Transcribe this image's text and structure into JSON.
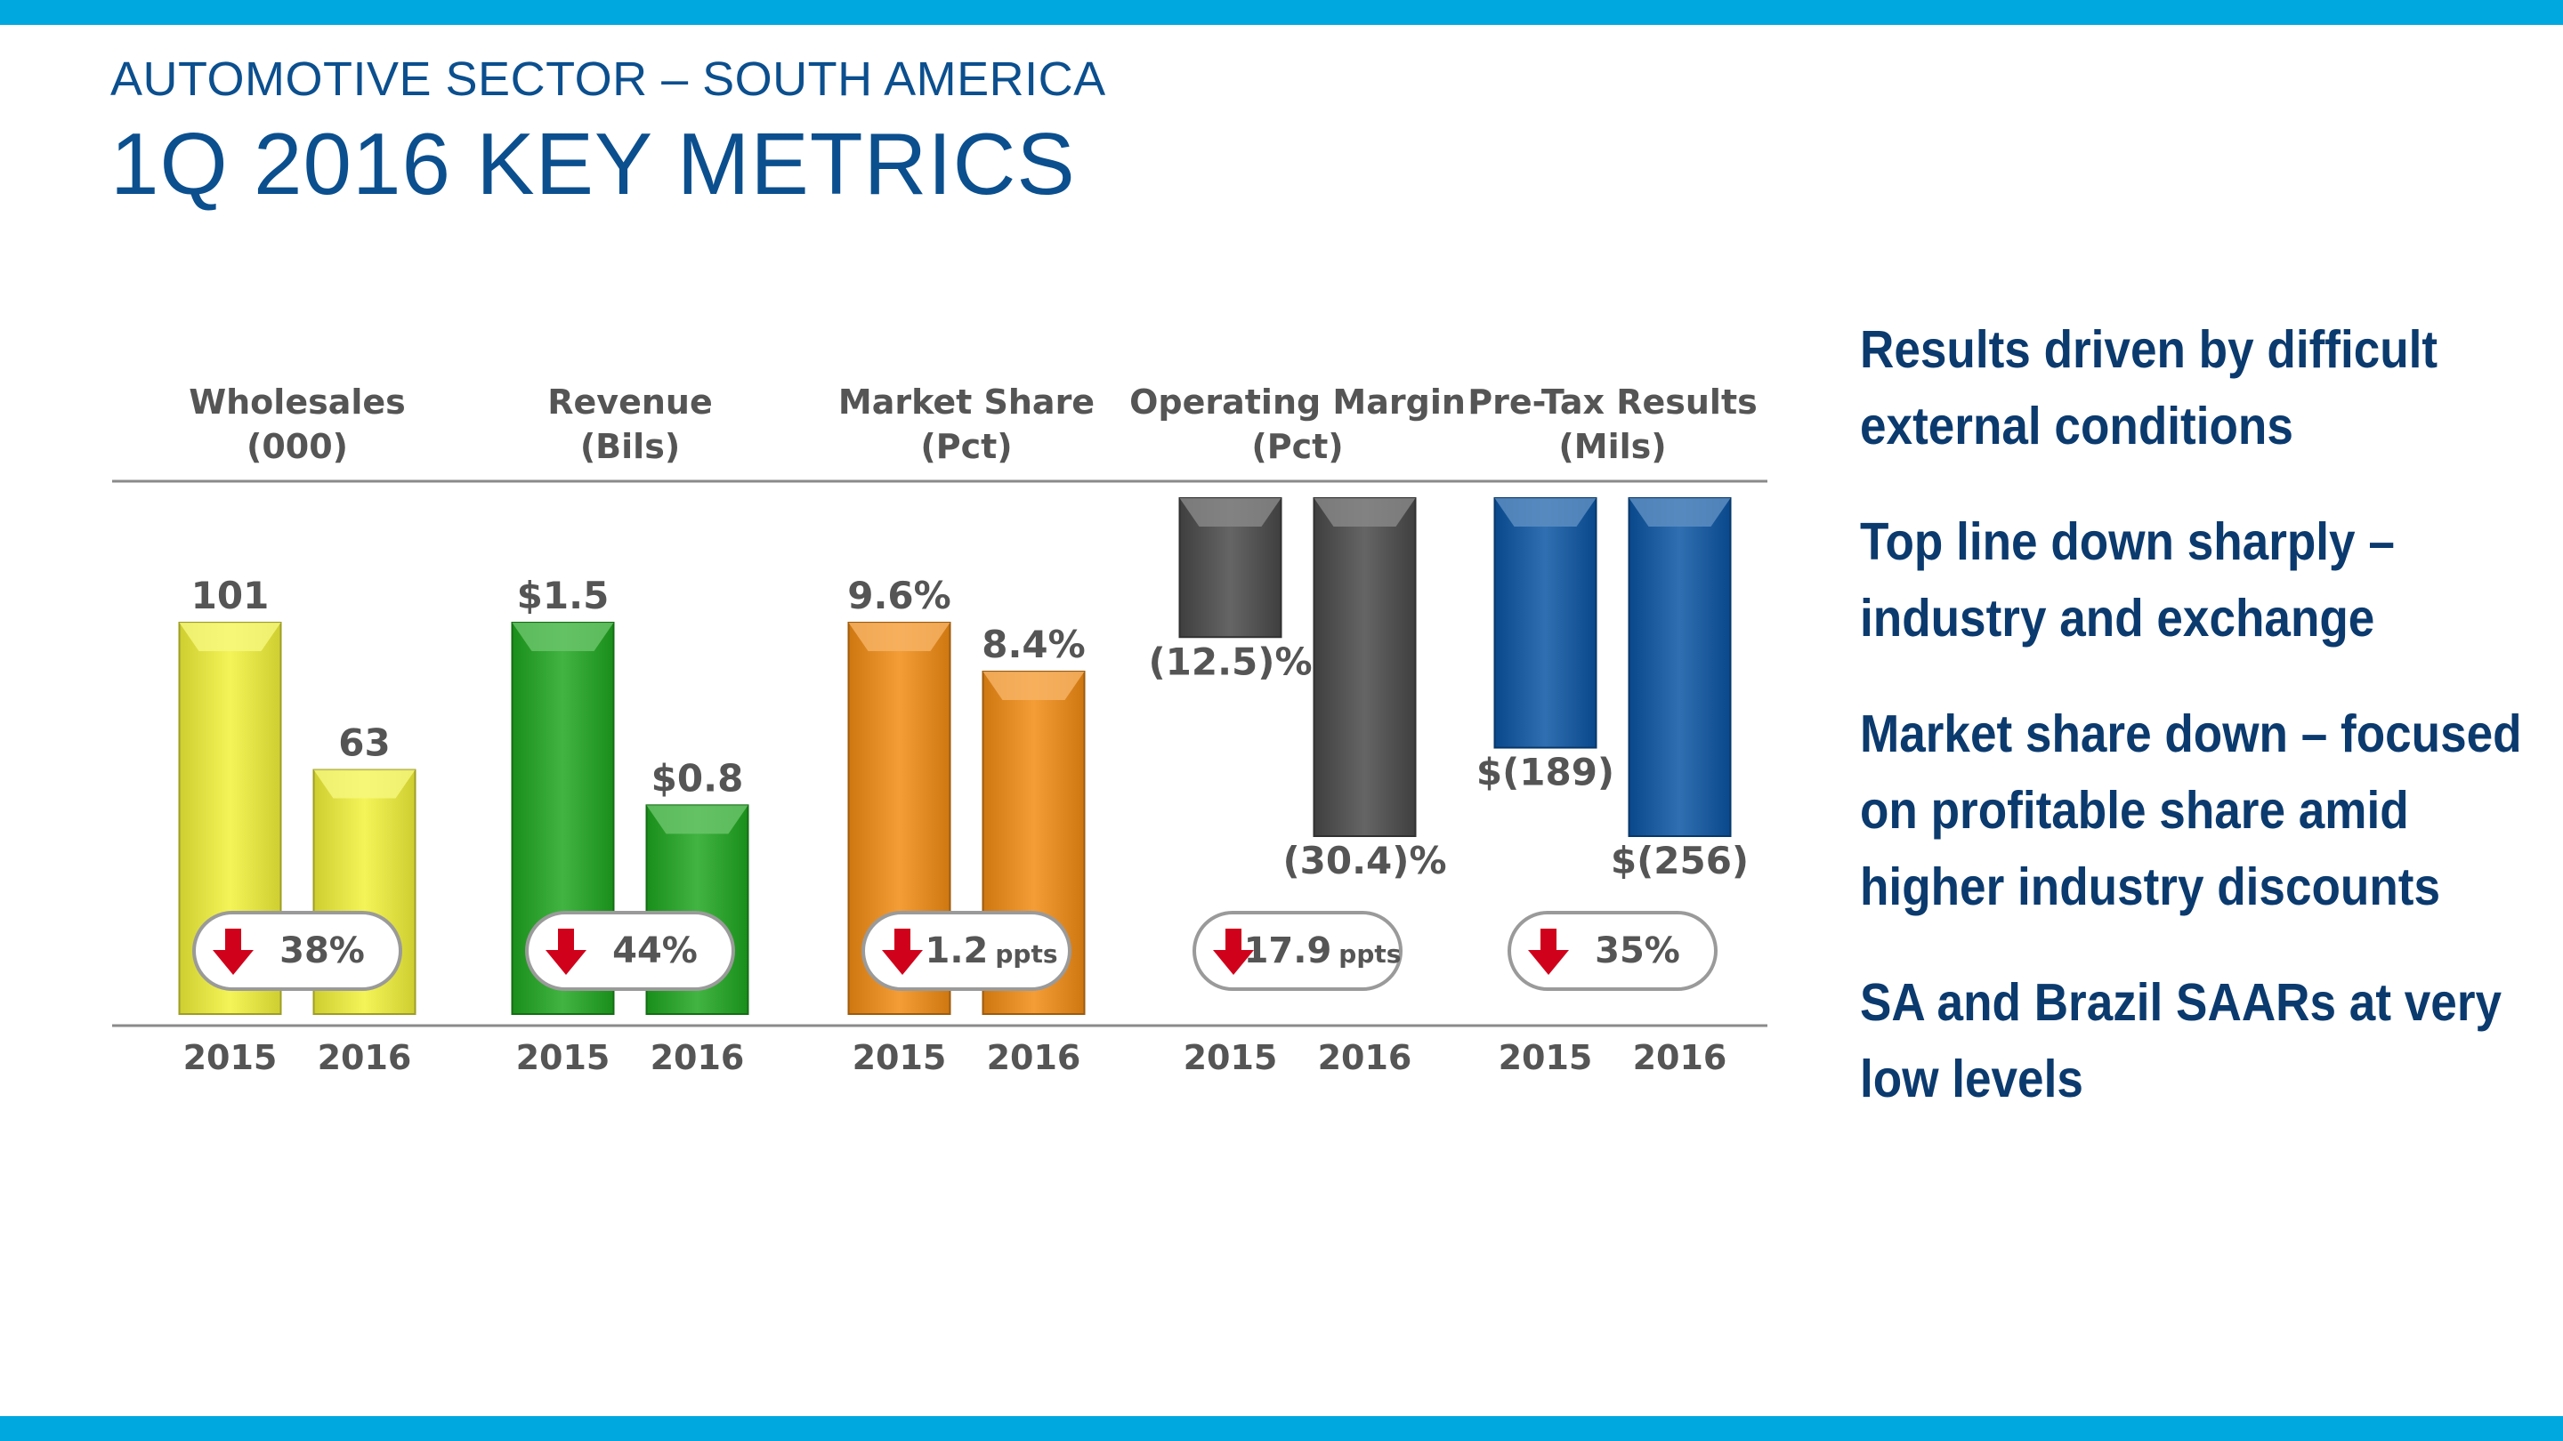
{
  "header": {
    "subtitle": "AUTOMOTIVE SECTOR – SOUTH AMERICA",
    "title": "1Q 2016 KEY METRICS"
  },
  "colors": {
    "band": "#00a8e0",
    "title": "#0b4f8e",
    "bullet_text": "#0b3a6e",
    "axis": "#8a8a8a",
    "label_text": "#555555",
    "down_arrow": "#d0021b"
  },
  "bullets": [
    "Results driven by difficult external conditions",
    "Top line down sharply – industry and exchange",
    "Market share down – focused on profitable share amid higher industry discounts",
    "SA and Brazil SAARs at very low levels"
  ],
  "chart_data": {
    "type": "bar",
    "title": "1Q 2016 KEY METRICS",
    "categories": [
      "2015",
      "2016"
    ],
    "panels": [
      {
        "title_line1": "Wholesales",
        "title_line2": "(000)",
        "color": "#f2f23a",
        "values": [
          101,
          63
        ],
        "labels": [
          "101",
          "63"
        ],
        "change_value": "38",
        "change_unit": "%",
        "change_direction": "down"
      },
      {
        "title_line1": "Revenue",
        "title_line2": "(Bils)",
        "color": "#1fa71f",
        "values": [
          1.5,
          0.8
        ],
        "labels": [
          "$1.5",
          "$0.8"
        ],
        "change_value": "44",
        "change_unit": "%",
        "change_direction": "down"
      },
      {
        "title_line1": "Market Share",
        "title_line2": "(Pct)",
        "color": "#f28c14",
        "values": [
          9.6,
          8.4
        ],
        "labels": [
          "9.6%",
          "8.4%"
        ],
        "change_value": "1.2",
        "change_unit": "ppts",
        "change_direction": "down"
      },
      {
        "title_line1": "Operating Margin",
        "title_line2": "(Pct)",
        "color": "#4a4a4a",
        "values": [
          -12.5,
          -30.4
        ],
        "labels": [
          "(12.5)%",
          "(30.4)%"
        ],
        "change_value": "17.9",
        "change_unit": "ppts",
        "change_direction": "down"
      },
      {
        "title_line1": "Pre-Tax Results",
        "title_line2": "(Mils)",
        "color": "#0b55a3",
        "values": [
          -189,
          -256
        ],
        "labels": [
          "$(189)",
          "$(256)"
        ],
        "change_value": "35",
        "change_unit": "%",
        "change_direction": "down"
      }
    ]
  }
}
